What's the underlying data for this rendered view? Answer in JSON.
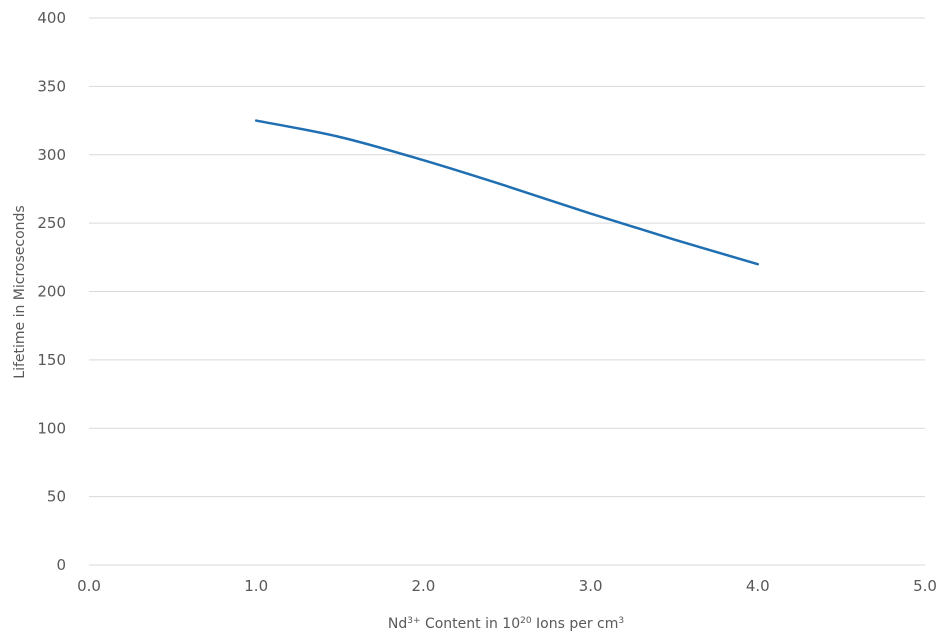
{
  "chart_data": {
    "type": "line",
    "title": "",
    "xlabel": {
      "parts": [
        {
          "text": "Nd",
          "sup": false
        },
        {
          "text": "3+",
          "sup": true
        },
        {
          "text": " Content in 10",
          "sup": false
        },
        {
          "text": "20",
          "sup": true
        },
        {
          "text": " Ions per cm",
          "sup": false
        },
        {
          "text": "3",
          "sup": true
        }
      ]
    },
    "ylabel": "Lifetime in Microseconds",
    "xlim": [
      0,
      5
    ],
    "ylim": [
      0,
      400
    ],
    "x_ticks": [
      "0.0",
      "1.0",
      "2.0",
      "3.0",
      "4.0",
      "5.0"
    ],
    "y_ticks": [
      "0",
      "50",
      "100",
      "150",
      "200",
      "250",
      "300",
      "350",
      "400"
    ],
    "grid": "horizontal",
    "legend": "none",
    "series": [
      {
        "color": "#1f6fb2",
        "x": [
          1.0,
          1.5,
          2.0,
          2.5,
          3.0,
          3.5,
          4.0
        ],
        "y": [
          325,
          313,
          296,
          277,
          257,
          238,
          220
        ]
      }
    ]
  }
}
